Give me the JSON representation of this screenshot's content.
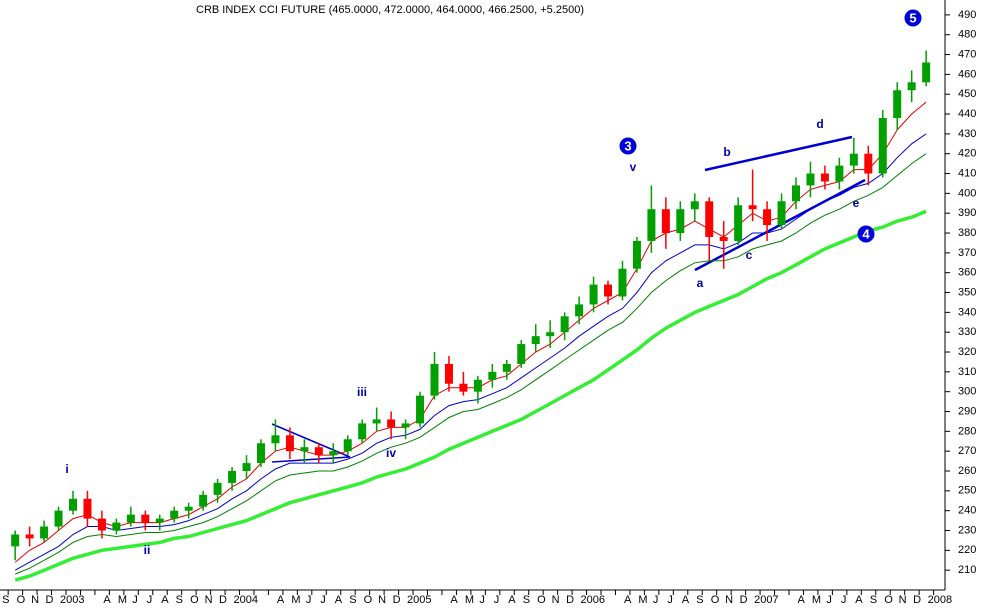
{
  "chart_data": {
    "type": "candlestick",
    "title": "CRB INDEX CCI FUTURE (465.0000, 472.0000, 464.0000, 466.2500, +5.2500)",
    "categories": [
      "S",
      "O",
      "N",
      "D",
      "2003",
      null,
      null,
      "A",
      "M",
      "J",
      "J",
      "A",
      "S",
      "O",
      "N",
      "D",
      "2004",
      null,
      null,
      "A",
      "M",
      "J",
      "J",
      "A",
      "S",
      "O",
      "N",
      "D",
      "2005",
      null,
      null,
      "A",
      "M",
      "J",
      "J",
      "A",
      "S",
      "O",
      "N",
      "D",
      "2006",
      null,
      null,
      "A",
      "M",
      "J",
      "J",
      "A",
      "S",
      "O",
      "N",
      "D",
      "2007",
      null,
      null,
      "A",
      "M",
      "J",
      "J",
      "A",
      "S",
      "O",
      "N",
      "D",
      "2008"
    ],
    "open": [
      222,
      228,
      226,
      232,
      240,
      246,
      236,
      230,
      234,
      238,
      234,
      236,
      240,
      242,
      248,
      254,
      260,
      264,
      274,
      278,
      270,
      272,
      268,
      270,
      276,
      284,
      286,
      282,
      284,
      298,
      314,
      304,
      300,
      306,
      310,
      314,
      324,
      328,
      330,
      338,
      344,
      354,
      348,
      362,
      376,
      392,
      380,
      392,
      396,
      378,
      376,
      394,
      392,
      384,
      396,
      404,
      410,
      406,
      414,
      420,
      410,
      438,
      452,
      456,
      null
    ],
    "high": [
      230,
      232,
      235,
      242,
      250,
      250,
      240,
      236,
      242,
      240,
      238,
      242,
      244,
      250,
      256,
      262,
      268,
      276,
      286,
      282,
      276,
      274,
      274,
      278,
      286,
      292,
      290,
      286,
      300,
      320,
      318,
      310,
      308,
      314,
      316,
      326,
      334,
      336,
      340,
      348,
      358,
      356,
      366,
      378,
      404,
      398,
      396,
      400,
      398,
      386,
      398,
      412,
      396,
      400,
      408,
      416,
      414,
      418,
      428,
      424,
      442,
      456,
      462,
      472,
      null
    ],
    "low": [
      215,
      222,
      224,
      230,
      238,
      232,
      226,
      228,
      232,
      230,
      230,
      234,
      236,
      240,
      244,
      250,
      256,
      262,
      270,
      266,
      264,
      264,
      264,
      268,
      274,
      280,
      276,
      276,
      282,
      296,
      300,
      298,
      294,
      302,
      306,
      312,
      320,
      322,
      326,
      334,
      340,
      344,
      346,
      360,
      370,
      372,
      376,
      386,
      366,
      362,
      374,
      386,
      376,
      382,
      392,
      398,
      402,
      402,
      410,
      404,
      408,
      432,
      446,
      454,
      null
    ],
    "close": [
      228,
      226,
      232,
      240,
      246,
      236,
      230,
      234,
      238,
      234,
      236,
      240,
      242,
      248,
      254,
      260,
      264,
      274,
      278,
      270,
      272,
      268,
      270,
      276,
      284,
      286,
      282,
      284,
      298,
      314,
      304,
      300,
      306,
      310,
      314,
      324,
      328,
      330,
      338,
      344,
      354,
      348,
      362,
      376,
      392,
      380,
      392,
      396,
      378,
      376,
      394,
      392,
      384,
      396,
      404,
      410,
      406,
      414,
      420,
      410,
      438,
      452,
      456,
      466,
      null
    ],
    "up_color": "#00a000",
    "down_color": "#ff0000",
    "series": [
      {
        "color": "#e00000",
        "width": 1,
        "values": [
          214,
          220,
          224,
          230,
          236,
          238,
          234,
          232,
          234,
          234,
          234,
          236,
          238,
          242,
          246,
          252,
          256,
          264,
          270,
          272,
          270,
          268,
          268,
          270,
          274,
          280,
          282,
          282,
          286,
          298,
          302,
          302,
          302,
          306,
          308,
          314,
          320,
          324,
          330,
          336,
          342,
          346,
          350,
          362,
          376,
          380,
          382,
          386,
          382,
          378,
          384,
          390,
          386,
          388,
          396,
          402,
          404,
          406,
          412,
          412,
          420,
          432,
          440,
          446,
          null
        ]
      },
      {
        "color": "#0000cc",
        "width": 1,
        "values": [
          210,
          214,
          218,
          222,
          228,
          232,
          232,
          230,
          231,
          232,
          232,
          233,
          235,
          238,
          241,
          246,
          250,
          256,
          261,
          264,
          264,
          264,
          264,
          266,
          269,
          274,
          277,
          278,
          281,
          288,
          293,
          295,
          296,
          299,
          302,
          307,
          312,
          317,
          322,
          328,
          333,
          338,
          342,
          350,
          360,
          366,
          370,
          374,
          374,
          372,
          375,
          380,
          380,
          382,
          387,
          392,
          396,
          399,
          403,
          405,
          410,
          418,
          425,
          430,
          null
        ]
      },
      {
        "color": "#008000",
        "width": 1,
        "values": [
          208,
          211,
          215,
          219,
          224,
          227,
          228,
          227,
          228,
          229,
          229,
          230,
          232,
          234,
          237,
          241,
          245,
          250,
          255,
          258,
          259,
          260,
          260,
          262,
          265,
          269,
          272,
          274,
          277,
          282,
          287,
          290,
          291,
          294,
          297,
          301,
          306,
          311,
          316,
          321,
          326,
          331,
          335,
          342,
          350,
          356,
          361,
          365,
          366,
          366,
          368,
          372,
          374,
          376,
          380,
          385,
          389,
          392,
          396,
          399,
          403,
          409,
          415,
          420,
          null
        ]
      },
      {
        "color": "#33ee33",
        "width": 3.5,
        "values": [
          205,
          207,
          210,
          213,
          216,
          218,
          220,
          221,
          222,
          223,
          224,
          226,
          227,
          229,
          231,
          233,
          235,
          238,
          241,
          244,
          246,
          248,
          250,
          252,
          254,
          257,
          259,
          261,
          264,
          267,
          271,
          274,
          277,
          280,
          283,
          286,
          290,
          294,
          298,
          302,
          306,
          311,
          316,
          321,
          327,
          332,
          336,
          340,
          343,
          346,
          349,
          353,
          357,
          360,
          364,
          368,
          372,
          375,
          378,
          381,
          383,
          386,
          388,
          391,
          null
        ]
      }
    ],
    "ylim": [
      200,
      497.5
    ],
    "yticks": [
      210,
      220,
      230,
      240,
      250,
      260,
      270,
      280,
      290,
      300,
      310,
      320,
      330,
      340,
      350,
      360,
      370,
      380,
      390,
      400,
      410,
      420,
      430,
      440,
      450,
      460,
      470,
      480,
      490
    ],
    "annotations": [
      "i",
      "ii",
      "iii",
      "iv",
      "v",
      "a",
      "b",
      "c",
      "d",
      "e"
    ],
    "wave_markers": [
      "3",
      "4",
      "5"
    ]
  }
}
